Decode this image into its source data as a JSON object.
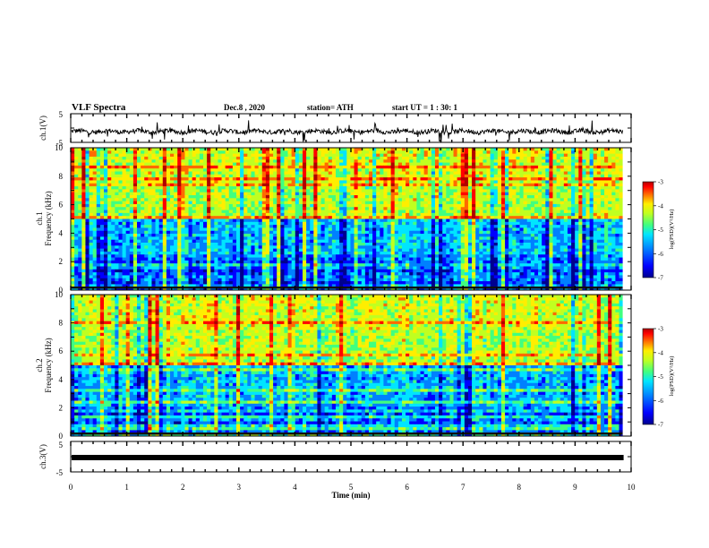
{
  "header": {
    "title": "VLF Spectra",
    "date": "Dec.8  , 2020",
    "station": "station= ATH",
    "start": "start  UT =   1 : 30: 1"
  },
  "colors": {
    "palette": [
      "#00008f",
      "#0000ff",
      "#0080ff",
      "#00e5ff",
      "#40ff80",
      "#c0ff20",
      "#ffee00",
      "#ff6a00",
      "#ff0000",
      "#b00000"
    ]
  },
  "chart_data": [
    {
      "type": "line",
      "name": "ch1-waveform",
      "ylabel": "ch.1(V)",
      "ylim": [
        -5,
        5
      ],
      "y_ticks": [
        "5",
        "-5"
      ],
      "x_range_min": [
        0,
        9.85
      ],
      "baseline": -1.2
    },
    {
      "type": "heatmap",
      "name": "ch1-spectrogram",
      "ylabel_line1": "ch.1",
      "ylabel_line2": "Frequency  (kHz)",
      "ylim": [
        0,
        10
      ],
      "y_ticks": [
        "0",
        "2",
        "4",
        "6",
        "8",
        "10"
      ],
      "colorbar": {
        "range": [
          -7,
          -3
        ],
        "ticks": [
          "-3",
          "-4",
          "-5",
          "-6",
          "-7"
        ],
        "label": "log(PSD)(V²/Hz)"
      }
    },
    {
      "type": "heatmap",
      "name": "ch2-spectrogram",
      "ylabel_line1": "ch.2",
      "ylabel_line2": "Frequency  (kHz)",
      "ylim": [
        0,
        10
      ],
      "y_ticks": [
        "0",
        "2",
        "4",
        "6",
        "8",
        "10"
      ],
      "colorbar": {
        "range": [
          -7,
          -3
        ],
        "ticks": [
          "-3",
          "-4",
          "-5",
          "-6",
          "-7"
        ],
        "label": "log(PSD)(V²/Hz)"
      }
    },
    {
      "type": "line",
      "name": "ch3-waveform",
      "ylabel": "ch.3(V)",
      "ylim": [
        -5,
        5
      ],
      "y_ticks": [
        "5",
        "-5"
      ],
      "baseline": -1.5,
      "xlabel": "Time  (min)",
      "x_ticks": [
        "0",
        "1",
        "2",
        "3",
        "4",
        "5",
        "6",
        "7",
        "8",
        "9",
        "10"
      ],
      "xlim": [
        0,
        10
      ]
    }
  ]
}
